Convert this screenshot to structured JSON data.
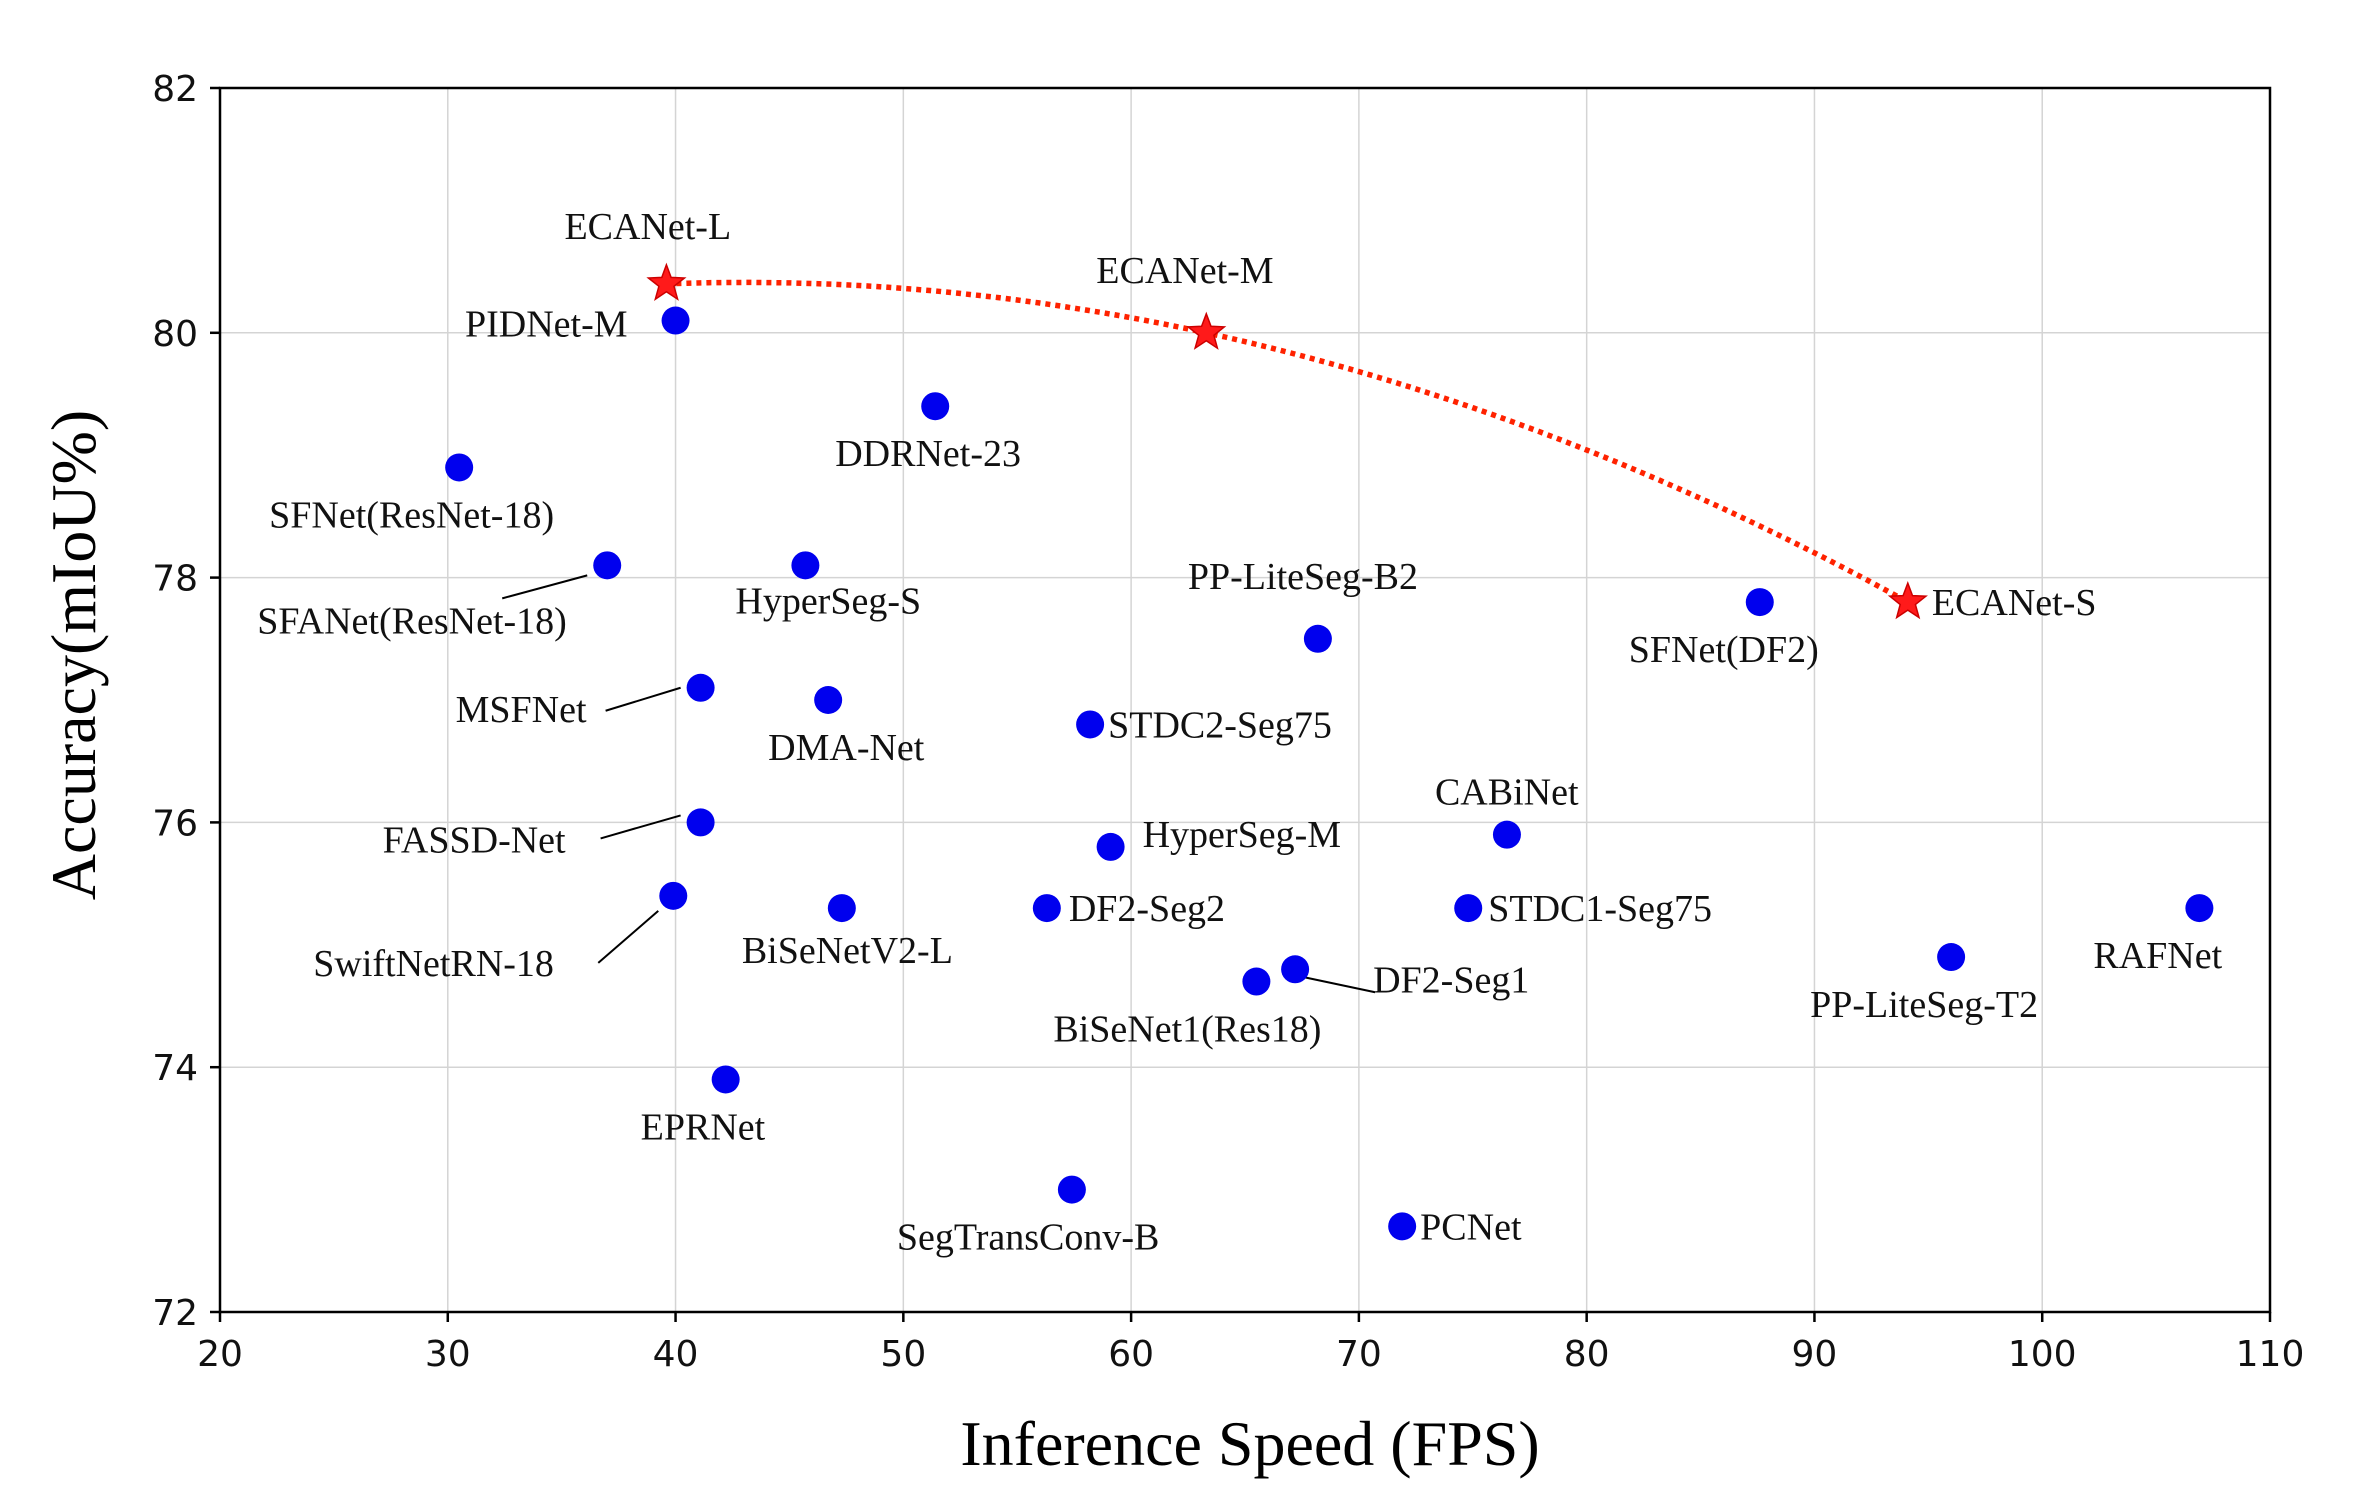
{
  "chart_data": {
    "type": "scatter",
    "xlabel": "Inference Speed (FPS)",
    "ylabel": "Accuracy(mIoU%)",
    "xlim": [
      20,
      110
    ],
    "ylim": [
      72,
      82
    ],
    "xticks": [
      20,
      30,
      40,
      50,
      60,
      70,
      80,
      90,
      100,
      110
    ],
    "yticks": [
      72,
      74,
      76,
      78,
      80,
      82
    ],
    "grid": true,
    "colors": {
      "point": "#0000ee",
      "highlight": "#ff1a1a",
      "curve": "#ff2200"
    },
    "series": [
      {
        "marker": "circle",
        "points": [
          {
            "label": "PIDNet-M",
            "x": 40.0,
            "y": 80.1
          },
          {
            "label": "DDRNet-23",
            "x": 51.4,
            "y": 79.4
          },
          {
            "label": "SFNet(ResNet-18)",
            "x": 30.5,
            "y": 78.9
          },
          {
            "label": "SFANet(ResNet-18)",
            "x": 37.0,
            "y": 78.1
          },
          {
            "label": "HyperSeg-S",
            "x": 45.7,
            "y": 78.1
          },
          {
            "label": "MSFNet",
            "x": 41.1,
            "y": 77.1
          },
          {
            "label": "DMA-Net",
            "x": 46.7,
            "y": 77.0
          },
          {
            "label": "FASSD-Net",
            "x": 41.1,
            "y": 76.0
          },
          {
            "label": "SwiftNetRN-18",
            "x": 39.9,
            "y": 75.4
          },
          {
            "label": "BiSeNetV2-L",
            "x": 47.3,
            "y": 75.3
          },
          {
            "label": "EPRNet",
            "x": 42.2,
            "y": 73.9
          },
          {
            "label": "SegTransConv-B",
            "x": 57.4,
            "y": 73.0
          },
          {
            "label": "STDC2-Seg75",
            "x": 58.2,
            "y": 76.8
          },
          {
            "label": "HyperSeg-M",
            "x": 59.1,
            "y": 75.8
          },
          {
            "label": "DF2-Seg2",
            "x": 56.3,
            "y": 75.3
          },
          {
            "label": "BiSeNet1(Res18)",
            "x": 65.5,
            "y": 74.7
          },
          {
            "label": "DF2-Seg1",
            "x": 67.2,
            "y": 74.8
          },
          {
            "label": "PP-LiteSeg-B2",
            "x": 68.2,
            "y": 77.5
          },
          {
            "label": "PCNet",
            "x": 71.9,
            "y": 72.7
          },
          {
            "label": "CABiNet",
            "x": 76.5,
            "y": 75.9
          },
          {
            "label": "STDC1-Seg75",
            "x": 74.8,
            "y": 75.3
          },
          {
            "label": "SFNet(DF2)",
            "x": 87.6,
            "y": 77.8
          },
          {
            "label": "PP-LiteSeg-T2",
            "x": 96.0,
            "y": 74.9
          },
          {
            "label": "RAFNet",
            "x": 106.9,
            "y": 75.3
          }
        ]
      },
      {
        "marker": "star",
        "line": "dotted",
        "points": [
          {
            "label": "ECANet-L",
            "x": 39.6,
            "y": 80.4
          },
          {
            "label": "ECANet-M",
            "x": 63.3,
            "y": 80.0
          },
          {
            "label": "ECANet-S",
            "x": 94.1,
            "y": 77.8
          }
        ]
      }
    ]
  }
}
